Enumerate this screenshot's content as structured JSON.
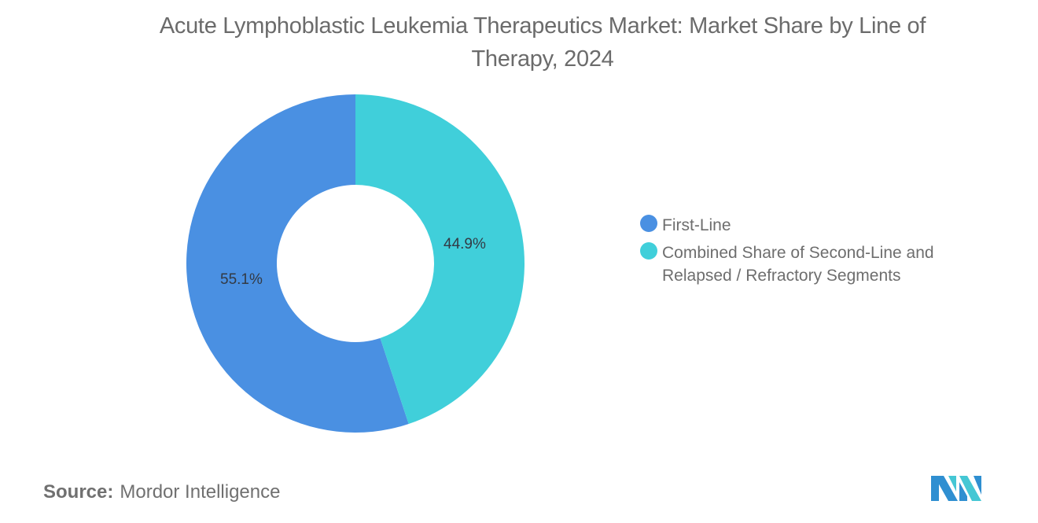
{
  "chart_data": {
    "type": "pie",
    "subtype": "donut",
    "title": "Acute Lymphoblastic Leukemia Therapeutics Market: Market Share by Line of Therapy, 2024",
    "categories": [
      "First-Line",
      "Combined Share of Second-Line and Relapsed / Refractory Segments"
    ],
    "values": [
      55.1,
      44.9
    ],
    "unit": "%",
    "data_labels": [
      "55.1%",
      "44.9%"
    ],
    "colors": [
      "#4a90e2",
      "#40cfda"
    ],
    "legend_position": "right"
  },
  "title_line1": "Acute Lymphoblastic Leukemia Therapeutics Market: Market Share by Line of",
  "title_line2": "Therapy, 2024",
  "legend": [
    {
      "label": "First-Line",
      "color": "#4a90e2"
    },
    {
      "label": "Combined Share of Second-Line and Relapsed / Refractory Segments",
      "color": "#40cfda"
    }
  ],
  "labels": {
    "first": "55.1%",
    "second": "44.9%"
  },
  "source": {
    "key": "Source:",
    "value": "Mordor Intelligence"
  }
}
